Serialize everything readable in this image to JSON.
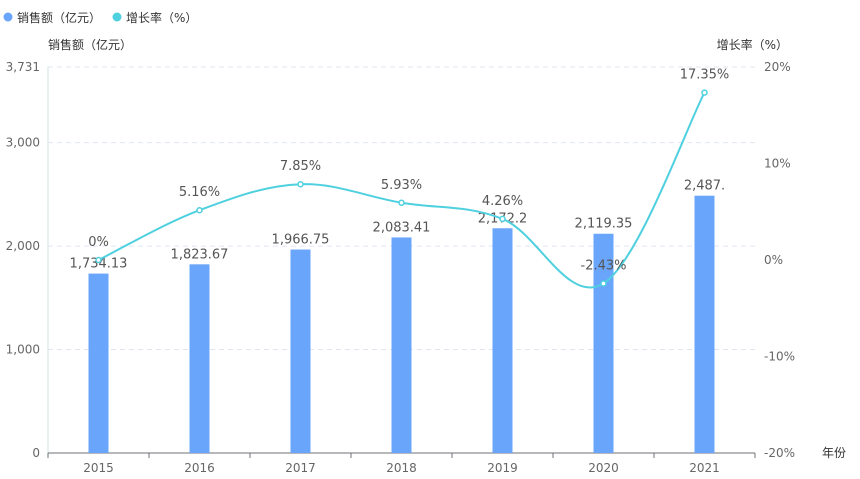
{
  "chart_data": {
    "type": "bar+line",
    "legend": [
      {
        "name": "销售额（亿元）",
        "color": "#6aa5fc"
      },
      {
        "name": "增长率（%）",
        "color": "#4fd0df"
      }
    ],
    "legend_position": "top-left",
    "y_left_label": "销售额（亿元）",
    "y_right_label": "增长率（%）",
    "x_label": "年份",
    "categories": [
      "2015",
      "2016",
      "2017",
      "2018",
      "2019",
      "2020",
      "2021"
    ],
    "series": [
      {
        "name": "销售额（亿元）",
        "type": "bar",
        "values": [
          1734.13,
          1823.67,
          1966.75,
          2083.41,
          2172.2,
          2119.35,
          2487
        ],
        "labels": [
          "1,734.13",
          "1,823.67",
          "1,966.75",
          "2,083.41",
          "2,172.2",
          "2,119.35",
          "2,487."
        ]
      },
      {
        "name": "增长率（%）",
        "type": "line",
        "values": [
          0,
          5.16,
          7.85,
          5.93,
          4.26,
          -2.43,
          17.35
        ],
        "labels": [
          "0%",
          "5.16%",
          "7.85%",
          "5.93%",
          "4.26%",
          "-2.43%",
          "17.35%"
        ]
      }
    ],
    "y_left_ticks": [
      "0",
      "1,000",
      "2,000",
      "3,000",
      "3,731"
    ],
    "y_left_tick_values": [
      0,
      1000,
      2000,
      3000,
      3731
    ],
    "ylim_left": [
      0,
      3731
    ],
    "y_right_ticks": [
      "-20%",
      "-10%",
      "0%",
      "10%",
      "20%"
    ],
    "y_right_tick_values": [
      -20,
      -10,
      0,
      10,
      20
    ],
    "ylim_right": [
      -20,
      20
    ],
    "grid": true
  }
}
